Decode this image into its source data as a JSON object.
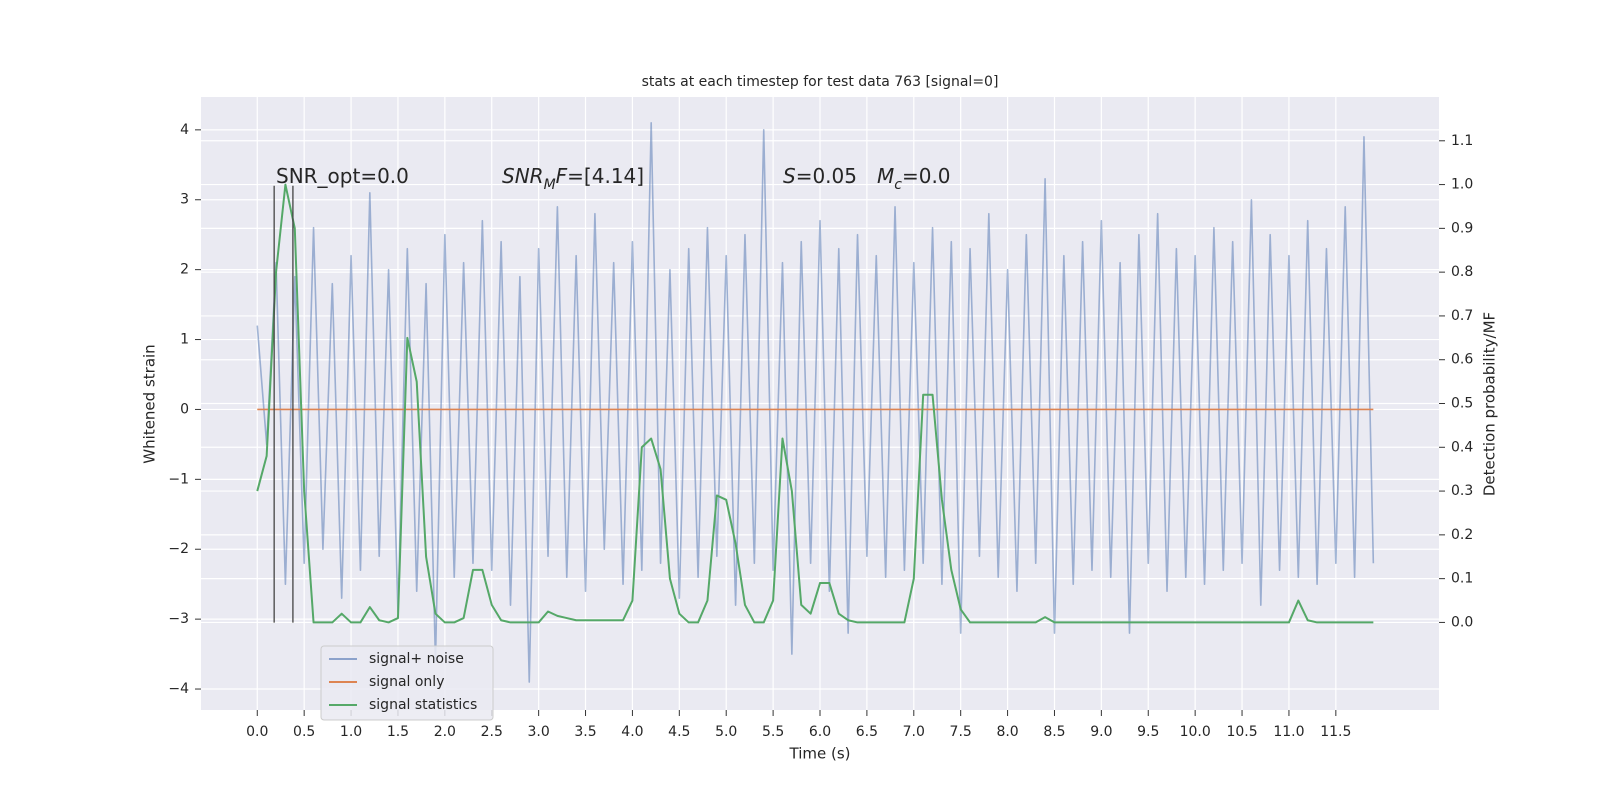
{
  "chart_data": {
    "type": "line",
    "title": "stats at each timestep for test data 763 [signal=0]",
    "xlabel": "Time (s)",
    "ylabel": "Whitened strain",
    "y2label": "Detection probability/MF",
    "xlim": [
      -0.6,
      12.6
    ],
    "ylim": [
      -4.3,
      4.47
    ],
    "y2lim": [
      -0.2,
      1.2
    ],
    "xticks": [
      {
        "value": 0,
        "label": "0.0"
      },
      0.5,
      {
        "value": 1,
        "label": "1.0"
      },
      1.5,
      {
        "value": 2,
        "label": "2.0"
      },
      2.5,
      {
        "value": 3,
        "label": "3.0"
      },
      3.5,
      {
        "value": 4,
        "label": "4.0"
      },
      4.5,
      {
        "value": 5,
        "label": "5.0"
      },
      5.5,
      {
        "value": 6,
        "label": "6.0"
      },
      6.5,
      {
        "value": 7,
        "label": "7.0"
      },
      7.5,
      {
        "value": 8,
        "label": "8.0"
      },
      8.5,
      {
        "value": 9,
        "label": "9.0"
      },
      9.5,
      {
        "value": 10,
        "label": "10.0"
      },
      10.5,
      {
        "value": 11,
        "label": "11.0"
      },
      11.5
    ],
    "yticks": [
      {
        "value": -4,
        "label": "−4"
      },
      {
        "value": -3,
        "label": "−3"
      },
      {
        "value": -2,
        "label": "−2"
      },
      {
        "value": -1,
        "label": "−1"
      },
      0,
      1,
      2,
      3,
      4
    ],
    "y2ticks": [
      {
        "value": 0,
        "label": "0.0"
      },
      0.1,
      0.2,
      0.3,
      0.4,
      0.5,
      0.6,
      0.7,
      0.8,
      0.9,
      {
        "value": 1,
        "label": "1.0"
      },
      1.1
    ],
    "grid": true,
    "legend_loc": "lower left",
    "x": [
      0,
      0.1,
      0.2,
      0.3,
      0.4,
      0.5,
      0.6,
      0.7,
      0.8,
      0.9,
      1,
      1.1,
      1.2,
      1.3,
      1.4,
      1.5,
      1.6,
      1.7,
      1.8,
      1.9,
      2,
      2.1,
      2.2,
      2.3,
      2.4,
      2.5,
      2.6,
      2.7,
      2.8,
      2.9,
      3,
      3.1,
      3.2,
      3.3,
      3.4,
      3.5,
      3.6,
      3.7,
      3.8,
      3.9,
      4,
      4.1,
      4.2,
      4.3,
      4.4,
      4.5,
      4.6,
      4.7,
      4.8,
      4.9,
      5,
      5.1,
      5.2,
      5.3,
      5.4,
      5.5,
      5.6,
      5.7,
      5.8,
      5.9,
      6,
      6.1,
      6.2,
      6.3,
      6.4,
      6.5,
      6.6,
      6.7,
      6.8,
      6.9,
      7,
      7.1,
      7.2,
      7.3,
      7.4,
      7.5,
      7.6,
      7.7,
      7.8,
      7.9,
      8,
      8.1,
      8.2,
      8.3,
      8.4,
      8.5,
      8.6,
      8.7,
      8.8,
      8.9,
      9,
      9.1,
      9.2,
      9.3,
      9.4,
      9.5,
      9.6,
      9.7,
      9.8,
      9.9,
      10,
      10.1,
      10.2,
      10.3,
      10.4,
      10.5,
      10.6,
      10.7,
      10.8,
      10.9,
      11,
      11.1,
      11.2,
      11.3,
      11.4,
      11.5,
      11.6,
      11.7,
      11.8,
      11.9
    ],
    "series": [
      {
        "name": "signal+ noise",
        "color": "#4c72b0",
        "axis": "y",
        "values": [
          1.2,
          -0.5,
          2.1,
          -2.5,
          1.9,
          -2.2,
          2.6,
          -2.0,
          1.8,
          -2.7,
          2.2,
          -2.3,
          3.1,
          -2.1,
          2.0,
          -2.9,
          2.3,
          -2.6,
          1.8,
          -3.6,
          2.5,
          -2.4,
          2.1,
          -2.2,
          2.7,
          -2.3,
          2.4,
          -2.8,
          1.9,
          -3.9,
          2.3,
          -2.1,
          2.9,
          -2.4,
          2.2,
          -2.6,
          2.8,
          -2.0,
          2.1,
          -2.5,
          2.4,
          -2.3,
          4.1,
          -2.2,
          2.0,
          -2.7,
          2.3,
          -2.4,
          2.6,
          -2.1,
          2.2,
          -2.8,
          2.5,
          -2.2,
          4.0,
          -2.3,
          2.1,
          -3.5,
          2.4,
          -2.2,
          2.7,
          -2.6,
          2.3,
          -3.2,
          2.5,
          -2.1,
          2.2,
          -2.4,
          2.9,
          -2.3,
          2.1,
          -2.2,
          2.6,
          -2.5,
          2.4,
          -3.2,
          2.3,
          -2.1,
          2.8,
          -2.4,
          2.0,
          -2.6,
          2.5,
          -2.2,
          3.3,
          -3.2,
          2.2,
          -2.5,
          2.4,
          -2.3,
          2.7,
          -2.4,
          2.1,
          -3.2,
          2.5,
          -2.2,
          2.8,
          -2.6,
          2.3,
          -2.4,
          2.2,
          -2.5,
          2.6,
          -2.3,
          2.4,
          -2.2,
          3.0,
          -2.8,
          2.5,
          -2.3,
          2.2,
          -2.4,
          2.7,
          -2.5,
          2.3,
          -2.2,
          2.9,
          -2.4,
          3.9,
          -2.2
        ]
      },
      {
        "name": "signal only",
        "color": "#dd8452",
        "axis": "y",
        "x": [
          0,
          11.9
        ],
        "values": [
          0,
          0
        ]
      },
      {
        "name": "signal statistics",
        "color": "#55a868",
        "axis": "y2",
        "values": [
          0.3,
          0.38,
          0.8,
          1.0,
          0.9,
          0.3,
          0.0,
          0.0,
          0.0,
          0.02,
          0.0,
          0.0,
          0.035,
          0.005,
          0.0,
          0.01,
          0.65,
          0.55,
          0.15,
          0.02,
          0.0,
          0.0,
          0.01,
          0.12,
          0.12,
          0.04,
          0.005,
          0.0,
          0.0,
          0.0,
          0.0,
          0.025,
          0.015,
          0.01,
          0.005,
          0.005,
          0.005,
          0.005,
          0.005,
          0.005,
          0.05,
          0.4,
          0.42,
          0.35,
          0.1,
          0.02,
          0.0,
          0.0,
          0.05,
          0.29,
          0.28,
          0.18,
          0.04,
          0.0,
          0.0,
          0.05,
          0.42,
          0.3,
          0.04,
          0.02,
          0.09,
          0.09,
          0.02,
          0.005,
          0.0,
          0.0,
          0.0,
          0.0,
          0.0,
          0.0,
          0.1,
          0.52,
          0.52,
          0.28,
          0.12,
          0.03,
          0.0,
          0.0,
          0.0,
          0.0,
          0.0,
          0.0,
          0.0,
          0.0,
          0.012,
          0.0,
          0.0,
          0.0,
          0.0,
          0.0,
          0.0,
          0.0,
          0.0,
          0.0,
          0.0,
          0.0,
          0.0,
          0.0,
          0.0,
          0.0,
          0.0,
          0.0,
          0.0,
          0.0,
          0.0,
          0.0,
          0.0,
          0.0,
          0.0,
          0.0,
          0.0,
          0.05,
          0.005,
          0.0,
          0.0,
          0.0,
          0.0,
          0.0,
          0.0,
          0.0
        ]
      }
    ],
    "vlines": [
      {
        "x": 0.18,
        "ymin": -3.05,
        "ymax": 3.2,
        "color": "#444444"
      },
      {
        "x": 0.38,
        "ymin": -3.05,
        "ymax": 3.2,
        "color": "#444444"
      }
    ],
    "annotations": [
      [
        {
          "text": "SNR_opt=0.0"
        }
      ],
      [
        {
          "text": "SNR",
          "italic": true
        },
        {
          "text": "M",
          "italic": true,
          "sub": true
        },
        {
          "text": "F",
          "italic": true
        },
        {
          "text": "=[4.14]"
        }
      ],
      [
        {
          "text": "S",
          "italic": true
        },
        {
          "text": "=0.05"
        }
      ],
      [
        {
          "text": "M",
          "italic": true
        },
        {
          "text": "c",
          "italic": true,
          "sub": true
        },
        {
          "text": "=0.0"
        }
      ]
    ]
  }
}
